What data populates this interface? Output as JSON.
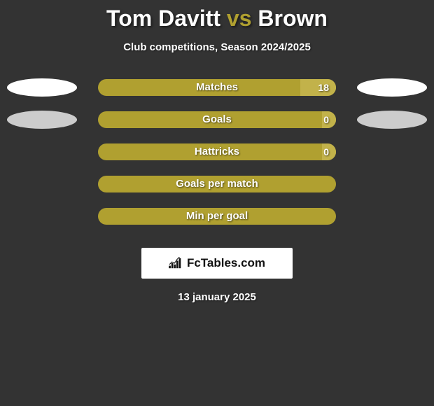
{
  "title": {
    "player1": "Tom Davitt",
    "vs": "vs",
    "player2": "Brown"
  },
  "subtitle": "Club competitions, Season 2024/2025",
  "colors": {
    "bar_base": "#b0a030",
    "bar_right_fill": "#c2b24a",
    "oval_left_1": "#ffffff",
    "oval_left_2": "#cccccc",
    "oval_right_1": "#ffffff",
    "oval_right_2": "#cccccc",
    "background": "#333333"
  },
  "rows": [
    {
      "label": "Matches",
      "right_value": "18",
      "right_fill_pct": 15,
      "show_oval_left": true,
      "show_oval_right": true,
      "oval_color": "#ffffff"
    },
    {
      "label": "Goals",
      "right_value": "0",
      "right_fill_pct": 6,
      "show_oval_left": true,
      "show_oval_right": true,
      "oval_color": "#cccccc"
    },
    {
      "label": "Hattricks",
      "right_value": "0",
      "right_fill_pct": 6,
      "show_oval_left": false,
      "show_oval_right": false,
      "oval_color": ""
    },
    {
      "label": "Goals per match",
      "right_value": "",
      "right_fill_pct": 0,
      "show_oval_left": false,
      "show_oval_right": false,
      "oval_color": ""
    },
    {
      "label": "Min per goal",
      "right_value": "",
      "right_fill_pct": 0,
      "show_oval_left": false,
      "show_oval_right": false,
      "oval_color": ""
    }
  ],
  "attribution": "FcTables.com",
  "date": "13 january 2025"
}
